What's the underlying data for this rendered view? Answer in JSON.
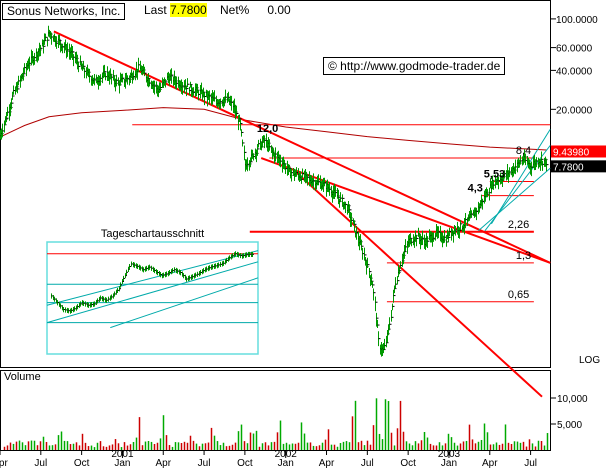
{
  "header": {
    "name": "Sonus Networks, Inc.",
    "last_label": "Last",
    "last_value": "7.7800",
    "net_label": "Net%",
    "net_value": "0.00"
  },
  "watermark": "© http://www.godmode-trader.de",
  "inset_title": "Tageschartausschnitt",
  "volume_label": "Volume",
  "log_label": "LOG",
  "colors": {
    "price_bar": "#009900",
    "resistance": "#ff0000",
    "moving_average": "#b00000",
    "channel": "#00aaaa",
    "inset_border": "#66dddd",
    "volume_up": "#00aa00",
    "volume_down": "#cc0000"
  },
  "chart_data": {
    "type": "ohlc",
    "price_axis": {
      "scale": "log",
      "ticks": [
        {
          "value": 100,
          "label": "100.0000"
        },
        {
          "value": 60,
          "label": "60.0000"
        },
        {
          "value": 40,
          "label": "40.0000"
        },
        {
          "value": 20,
          "label": "20.0000"
        }
      ],
      "range": [
        0.2,
        140
      ]
    },
    "volume_axis": {
      "ticks": [
        {
          "value": 10000,
          "label": "10,000"
        },
        {
          "value": 5000,
          "label": "5,000"
        }
      ],
      "range": [
        0,
        15000
      ]
    },
    "time_axis": {
      "months": [
        "Apr",
        "Jul",
        "Oct",
        "Jan",
        "Apr",
        "Jul",
        "Oct",
        "Jan",
        "Apr",
        "Jul",
        "Oct",
        "Jan",
        "Apr",
        "Jul"
      ],
      "years": [
        "2001",
        "2002",
        "2003"
      ]
    },
    "price_labels": {
      "price_marker": "9.43980",
      "last_marker": "7.7800"
    },
    "price_path": [
      [
        2000.25,
        12.5
      ],
      [
        2000.33,
        26
      ],
      [
        2000.42,
        45
      ],
      [
        2000.5,
        60
      ],
      [
        2000.55,
        78
      ],
      [
        2000.6,
        68
      ],
      [
        2000.68,
        55
      ],
      [
        2000.75,
        42
      ],
      [
        2000.83,
        33
      ],
      [
        2000.9,
        38
      ],
      [
        2000.97,
        32
      ],
      [
        2001.04,
        35
      ],
      [
        2001.1,
        42
      ],
      [
        2001.17,
        33
      ],
      [
        2001.22,
        28
      ],
      [
        2001.28,
        36
      ],
      [
        2001.35,
        32
      ],
      [
        2001.42,
        29
      ],
      [
        2001.5,
        26
      ],
      [
        2001.58,
        23
      ],
      [
        2001.64,
        24
      ],
      [
        2001.68,
        21
      ],
      [
        2001.72,
        15
      ],
      [
        2001.75,
        7.5
      ],
      [
        2001.79,
        8.5
      ],
      [
        2001.83,
        10.3
      ],
      [
        2001.87,
        11.5
      ],
      [
        2001.92,
        9.2
      ],
      [
        2001.97,
        8.1
      ],
      [
        2002.02,
        6.6
      ],
      [
        2002.08,
        6.2
      ],
      [
        2002.17,
        5.6
      ],
      [
        2002.25,
        5.1
      ],
      [
        2002.32,
        4.2
      ],
      [
        2002.38,
        3.4
      ],
      [
        2002.43,
        2.2
      ],
      [
        2002.47,
        1.6
      ],
      [
        2002.5,
        1.2
      ],
      [
        2002.53,
        0.9
      ],
      [
        2002.55,
        0.55
      ],
      [
        2002.57,
        0.3
      ],
      [
        2002.6,
        0.27
      ],
      [
        2002.63,
        0.4
      ],
      [
        2002.67,
        0.9
      ],
      [
        2002.71,
        1.4
      ],
      [
        2002.75,
        1.9
      ],
      [
        2002.8,
        2.1
      ],
      [
        2002.85,
        1.9
      ],
      [
        2002.92,
        2.2
      ],
      [
        2002.98,
        2.0
      ],
      [
        2003.02,
        2.3
      ],
      [
        2003.08,
        2.5
      ],
      [
        2003.13,
        2.9
      ],
      [
        2003.18,
        3.5
      ],
      [
        2003.22,
        4.3
      ],
      [
        2003.27,
        5.5
      ],
      [
        2003.33,
        6.0
      ],
      [
        2003.38,
        6.7
      ],
      [
        2003.42,
        7.5
      ],
      [
        2003.45,
        8.3
      ],
      [
        2003.5,
        7.4
      ],
      [
        2003.55,
        8.1
      ],
      [
        2003.6,
        7.8
      ]
    ],
    "moving_average": [
      [
        2000.25,
        12.2
      ],
      [
        2000.4,
        15
      ],
      [
        2000.55,
        17.5
      ],
      [
        2000.75,
        18.8
      ],
      [
        2001.0,
        19.6
      ],
      [
        2001.25,
        20.6
      ],
      [
        2001.5,
        20.0
      ],
      [
        2001.75,
        16.5
      ],
      [
        2002.0,
        14.6
      ],
      [
        2002.25,
        13.4
      ],
      [
        2002.5,
        12.3
      ],
      [
        2002.75,
        11.5
      ],
      [
        2003.0,
        10.8
      ],
      [
        2003.25,
        10.2
      ],
      [
        2003.45,
        9.9
      ],
      [
        2003.6,
        9.7
      ]
    ],
    "levels": [
      {
        "label": "",
        "value": 15.2,
        "x_start": 2001.06,
        "x_end": 2003.62
      },
      {
        "label": "8,4",
        "value": 8.4,
        "x_start": 2001.9,
        "x_end": 2003.52
      },
      {
        "label": "5,53",
        "value": 5.53,
        "x_start": 2003.25,
        "x_end": 2003.52
      },
      {
        "label": "4,3",
        "value": 4.3,
        "x_start": 2003.2,
        "x_end": 2003.52
      },
      {
        "label": "2,26",
        "value": 2.26,
        "x_start": 2001.78,
        "x_end": 2003.52
      },
      {
        "label": "1,3",
        "value": 1.3,
        "x_start": 2002.62,
        "x_end": 2003.52
      },
      {
        "label": "0,65",
        "value": 0.65,
        "x_start": 2002.62,
        "x_end": 2003.52
      }
    ],
    "annotations": [
      {
        "text": "12,0",
        "x": 2001.86,
        "y": 12.0
      }
    ],
    "trendlines": [
      {
        "name": "downtrend-long",
        "from": [
          2000.58,
          80
        ],
        "to": [
          2003.62,
          1.3
        ]
      },
      {
        "name": "downtrend-steep",
        "from": [
          2002.06,
          6.6
        ],
        "to": [
          2003.57,
          0.12
        ]
      },
      {
        "name": "downtrend-mid",
        "from": [
          2001.85,
          8.4
        ],
        "to": [
          2003.62,
          1.3
        ]
      }
    ],
    "channel": [
      {
        "from": [
          2003.22,
          2.3
        ],
        "to": [
          2003.62,
          10.5
        ]
      },
      {
        "from": [
          2003.26,
          2.6
        ],
        "to": [
          2003.62,
          14.0
        ]
      },
      {
        "from": [
          2003.18,
          2.3
        ],
        "to": [
          2003.62,
          7.0
        ]
      }
    ],
    "inset": {
      "title": "Tageschartausschnitt",
      "range": [
        0.3,
        7.5
      ],
      "closes": [
        1.6,
        1.3,
        1.05,
        1.0,
        1.1,
        1.3,
        1.2,
        1.25,
        1.5,
        1.4,
        1.6,
        2.0,
        3.0,
        4.3,
        4.0,
        3.6,
        3.9,
        3.4,
        3.0,
        3.2,
        3.6,
        3.3,
        2.7,
        2.9,
        3.2,
        3.6,
        3.9,
        4.1,
        4.4,
        5.2,
        5.9,
        5.5,
        5.8
      ],
      "levels": [
        5.9,
        2.3,
        1.3,
        0.7
      ],
      "channel": [
        {
          "from": [
            0.0,
            1.2
          ],
          "to": [
            1.0,
            6.5
          ]
        },
        {
          "from": [
            0.0,
            0.7
          ],
          "to": [
            1.0,
            4.6
          ]
        },
        {
          "from": [
            0.3,
            0.6
          ],
          "to": [
            1.0,
            2.8
          ]
        }
      ]
    },
    "volume_peaks": [
      {
        "x": 2000.37,
        "v": 2500
      },
      {
        "x": 2000.52,
        "v": 5500
      },
      {
        "x": 2000.62,
        "v": 4200
      },
      {
        "x": 2000.75,
        "v": 2800
      },
      {
        "x": 2000.95,
        "v": 2500
      },
      {
        "x": 2001.1,
        "v": 5200
      },
      {
        "x": 2001.25,
        "v": 6500
      },
      {
        "x": 2001.4,
        "v": 3800
      },
      {
        "x": 2001.55,
        "v": 4600
      },
      {
        "x": 2001.72,
        "v": 4800
      },
      {
        "x": 2001.8,
        "v": 6900
      },
      {
        "x": 2001.96,
        "v": 5400
      },
      {
        "x": 2002.1,
        "v": 5300
      },
      {
        "x": 2002.25,
        "v": 4300
      },
      {
        "x": 2002.42,
        "v": 9000
      },
      {
        "x": 2002.55,
        "v": 10200
      },
      {
        "x": 2002.62,
        "v": 14000
      },
      {
        "x": 2002.7,
        "v": 7500
      },
      {
        "x": 2002.85,
        "v": 6000
      },
      {
        "x": 2003.0,
        "v": 4200
      },
      {
        "x": 2003.12,
        "v": 6100
      },
      {
        "x": 2003.22,
        "v": 5000
      },
      {
        "x": 2003.35,
        "v": 4800
      },
      {
        "x": 2003.5,
        "v": 3900
      },
      {
        "x": 2003.6,
        "v": 3000
      }
    ]
  }
}
